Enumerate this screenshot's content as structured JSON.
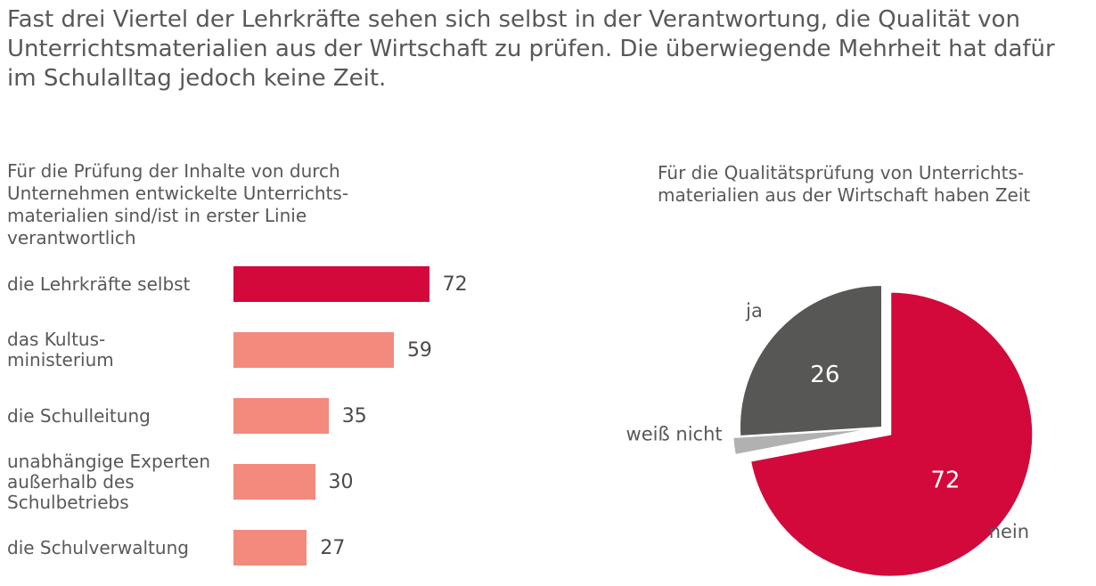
{
  "headline": "Fast drei Viertel der Lehrkräfte sehen sich selbst in der Verantwortung, die Qualität von\nUnterrichtsmaterialien aus der Wirtschaft zu prüfen. Die überwiegende Mehrheit hat dafür\nim Schulalltag jedoch keine Zeit.",
  "colors": {
    "text_gray": "#58585a",
    "value_text": "#4a4a4a",
    "accent_red": "#d2093a",
    "salmon": "#f4897e",
    "pie_dark_gray": "#575756",
    "pie_light_gray": "#b1b1b1",
    "background": "#ffffff"
  },
  "chart_data": [
    {
      "type": "bar",
      "orientation": "horizontal",
      "title": "Für die Prüfung der Inhalte von durch\nUnternehmen entwickelte Unterrichts-\nmaterialien sind/ist in erster Linie\nverantwortlich",
      "categories": [
        "die Lehrkräfte selbst",
        "das Kultus-\nministerium",
        "die Schulleitung",
        "unabhängige Experten\naußerhalb des\nSchulbetriebs",
        "die Schulverwaltung"
      ],
      "values": [
        72,
        59,
        35,
        30,
        27
      ],
      "bar_colors": [
        "#d2093a",
        "#f4897e",
        "#f4897e",
        "#f4897e",
        "#f4897e"
      ],
      "xlim": [
        0,
        100
      ],
      "grid": false,
      "value_labels": [
        "72",
        "59",
        "35",
        "30",
        "27"
      ]
    },
    {
      "type": "pie",
      "title": "Für die Qualitätsprüfung von Unterrichts-\nmaterialien aus der Wirtschaft haben Zeit",
      "labels": [
        "nein",
        "weiß nicht",
        "ja"
      ],
      "values": [
        72,
        2,
        26
      ],
      "slice_colors": [
        "#d2093a",
        "#b1b1b1",
        "#575756"
      ],
      "inside_labels": [
        "72",
        "",
        "26"
      ],
      "start_angle_deg": 0,
      "direction": "clockwise",
      "exploded_slice": "nein"
    }
  ]
}
